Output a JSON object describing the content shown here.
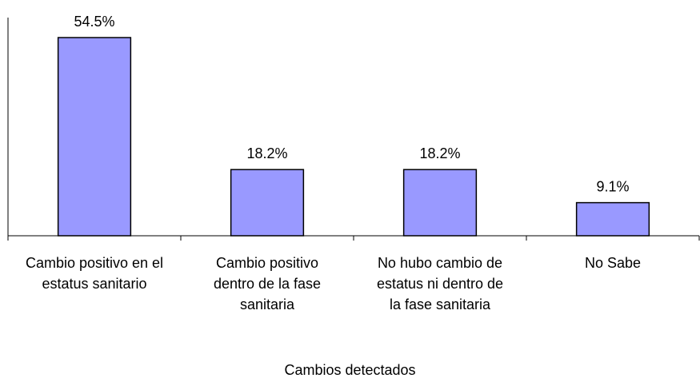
{
  "chart_data": {
    "type": "bar",
    "x_label": "Cambios detectados",
    "categories": [
      "Cambio positivo en el estatus sanitario",
      "Cambio positivo dentro de la fase sanitaria",
      "No hubo cambio de estatus ni dentro de la fase sanitaria",
      "No Sabe"
    ],
    "values": [
      54.5,
      18.2,
      18.2,
      9.1
    ],
    "value_labels": [
      "54.5%",
      "18.2%",
      "18.2%",
      "9.1%"
    ],
    "color": "#9999ff",
    "ylim": [
      0,
      60
    ]
  }
}
